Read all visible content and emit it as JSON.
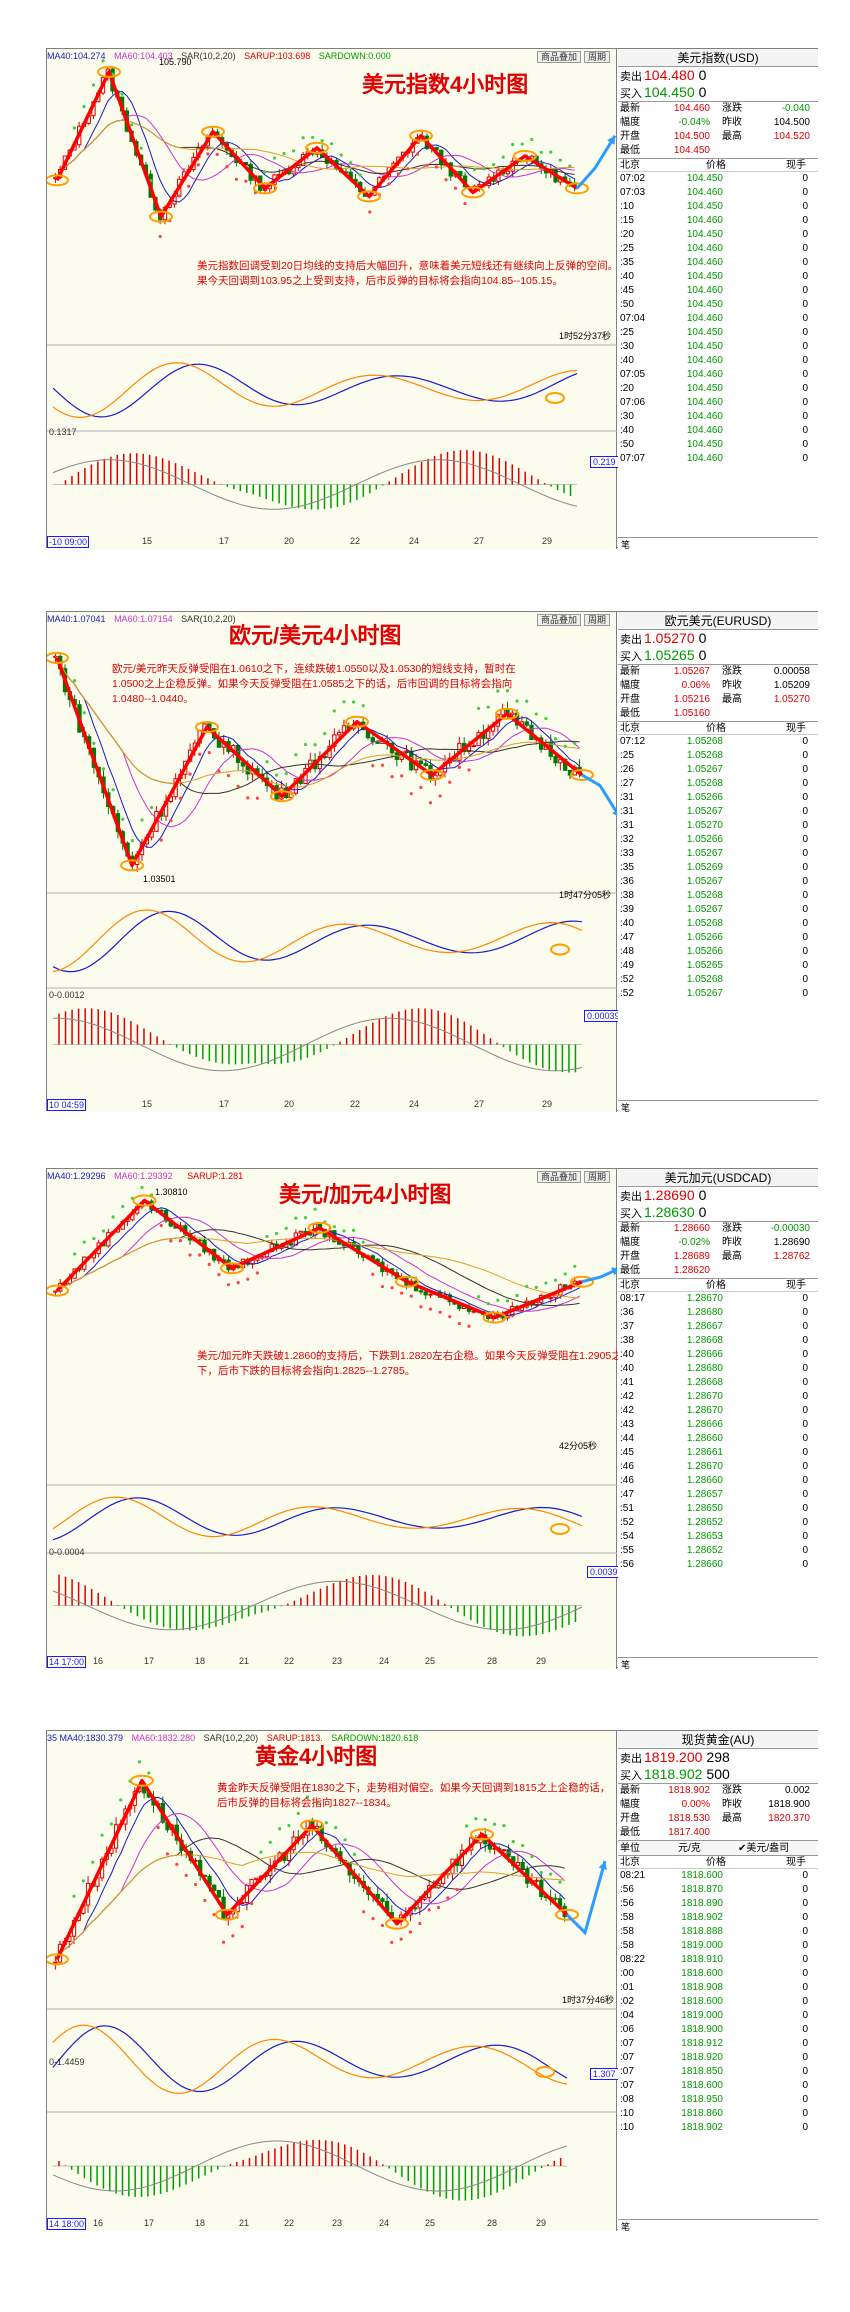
{
  "panels": [
    {
      "id": "usd",
      "chart_title": "美元指数4小时图",
      "topbar": {
        "ma40": "MA40:104.274",
        "ma60": "MA60:104.403",
        "sar": "SAR(10,2,20)",
        "sarup": "SARUP:103.698",
        "sardown": "SARDOWN:0.000"
      },
      "buttons": [
        "商品叠加",
        "周期"
      ],
      "peak_label": "105.790",
      "annotation": "美元指数回调受到20日均线的支持后大幅回升，意味着美元短线还有继续向上反弹的空间。如果今天回调到103.95之上受到支持，后市反弹的目标将会指向104.85--105.15。",
      "timer": "1时52分37秒",
      "sub_label": "0.1317",
      "value_box": "0.219",
      "x_start": "-10 09:00",
      "x_labels": [
        "15",
        "17",
        "20",
        "22",
        "24",
        "27",
        "29"
      ],
      "quote": {
        "title": "美元指数(USD)",
        "sell_label": "卖出",
        "sell": "104.480",
        "sell_size": "0",
        "buy_label": "买入",
        "buy": "104.450",
        "buy_size": "0",
        "rows": [
          [
            "最新",
            "104.460",
            "涨跌",
            "-0.040"
          ],
          [
            "幅度",
            "-0.04%",
            "昨收",
            "104.500"
          ],
          [
            "开盘",
            "104.500",
            "最高",
            "104.520"
          ],
          [
            "最低",
            "104.450",
            "",
            ""
          ]
        ],
        "tick_header": [
          "北京",
          "价格",
          "现手"
        ],
        "ticks": [
          [
            "07:02",
            "104.450",
            "0"
          ],
          [
            "07:03",
            "104.460",
            "0"
          ],
          [
            ":10",
            "104.450",
            "0"
          ],
          [
            ":15",
            "104.460",
            "0"
          ],
          [
            ":20",
            "104.450",
            "0"
          ],
          [
            ":25",
            "104.460",
            "0"
          ],
          [
            ":35",
            "104.460",
            "0"
          ],
          [
            ":40",
            "104.450",
            "0"
          ],
          [
            ":45",
            "104.460",
            "0"
          ],
          [
            ":50",
            "104.450",
            "0"
          ],
          [
            "07:04",
            "104.460",
            "0"
          ],
          [
            ":25",
            "104.450",
            "0"
          ],
          [
            ":30",
            "104.450",
            "0"
          ],
          [
            ":40",
            "104.460",
            "0"
          ],
          [
            "07:05",
            "104.460",
            "0"
          ],
          [
            ":20",
            "104.450",
            "0"
          ],
          [
            "07:06",
            "104.460",
            "0"
          ],
          [
            ":30",
            "104.460",
            "0"
          ],
          [
            ":40",
            "104.460",
            "0"
          ],
          [
            ":50",
            "104.450",
            "0"
          ],
          [
            "07:07",
            "104.460",
            "0"
          ]
        ],
        "footer": "笔"
      }
    },
    {
      "id": "eur",
      "chart_title": "欧元/美元4小时图",
      "topbar": {
        "ma40": "MA40:1.07041",
        "ma60": "MA60:1.07154",
        "sar": "SAR(10,2,20)",
        "sarup": "",
        "sardown": ""
      },
      "buttons": [
        "商品叠加",
        "周期"
      ],
      "peak_label": "1.03501",
      "annotation": "欧元/美元昨天反弹受阻在1.0610之下，连续跌破1.0550以及1.0530的短线支持，暂时在1.0500之上企稳反弹。如果今天反弹受阻在1.0585之下的话，后市回调的目标将会指向1.0480--1.0440。",
      "timer": "1时47分05秒",
      "sub_label": "0-0.0012",
      "value_box": "0.00039",
      "x_start": "10 04:59",
      "x_labels": [
        "15",
        "17",
        "20",
        "22",
        "24",
        "27",
        "29"
      ],
      "quote": {
        "title": "欧元美元(EURUSD)",
        "sell_label": "卖出",
        "sell": "1.05270",
        "sell_size": "0",
        "buy_label": "买入",
        "buy": "1.05265",
        "buy_size": "0",
        "rows": [
          [
            "最新",
            "1.05267",
            "涨跌",
            "0.00058"
          ],
          [
            "幅度",
            "0.06%",
            "昨收",
            "1.05209"
          ],
          [
            "开盘",
            "1.05216",
            "最高",
            "1.05270"
          ],
          [
            "最低",
            "1.05160",
            "",
            ""
          ]
        ],
        "tick_header": [
          "北京",
          "价格",
          "现手"
        ],
        "ticks": [
          [
            "07:12",
            "1.05268",
            "0"
          ],
          [
            ":25",
            "1.05268",
            "0"
          ],
          [
            ":26",
            "1.05267",
            "0"
          ],
          [
            ":27",
            "1.05268",
            "0"
          ],
          [
            ":31",
            "1.05266",
            "0"
          ],
          [
            ":31",
            "1.05267",
            "0"
          ],
          [
            ":31",
            "1.05270",
            "0"
          ],
          [
            ":32",
            "1.05266",
            "0"
          ],
          [
            ":33",
            "1.05267",
            "0"
          ],
          [
            ":35",
            "1.05269",
            "0"
          ],
          [
            ":36",
            "1.05267",
            "0"
          ],
          [
            ":38",
            "1.05268",
            "0"
          ],
          [
            ":39",
            "1.05267",
            "0"
          ],
          [
            ":40",
            "1.05268",
            "0"
          ],
          [
            ":47",
            "1.05266",
            "0"
          ],
          [
            ":48",
            "1.05266",
            "0"
          ],
          [
            ":49",
            "1.05265",
            "0"
          ],
          [
            ":52",
            "1.05268",
            "0"
          ],
          [
            ":52",
            "1.05267",
            "0"
          ]
        ],
        "footer": "笔"
      }
    },
    {
      "id": "cad",
      "chart_title": "美元/加元4小时图",
      "topbar": {
        "ma40": "MA40:1.29296",
        "ma60": "MA60:1.29392",
        "sar": "",
        "sarup": "SARUP:1.281",
        "sardown": ""
      },
      "buttons": [
        "商品叠加",
        "周期"
      ],
      "peak_label": "1.30810",
      "annotation": "美元/加元昨天跌破1.2860的支持后，下跌到1.2820左右企稳。如果今天反弹受阻在1.2905之下，后市下跌的目标将会指向1.2825--1.2785。",
      "timer": "42分05秒",
      "sub_label": "0-0.0004",
      "value_box": "0.00398",
      "x_start": "14 17:00",
      "x_labels": [
        "16",
        "17",
        "18",
        "21",
        "22",
        "23",
        "24",
        "25",
        "28",
        "29"
      ],
      "quote": {
        "title": "美元加元(USDCAD)",
        "sell_label": "卖出",
        "sell": "1.28690",
        "sell_size": "0",
        "buy_label": "买入",
        "buy": "1.28630",
        "buy_size": "0",
        "rows": [
          [
            "最新",
            "1.28660",
            "涨跌",
            "-0.00030"
          ],
          [
            "幅度",
            "-0.02%",
            "昨收",
            "1.28690"
          ],
          [
            "开盘",
            "1.28689",
            "最高",
            "1.28762"
          ],
          [
            "最低",
            "1.28620",
            "",
            ""
          ]
        ],
        "tick_header": [
          "北京",
          "价格",
          "现手"
        ],
        "ticks": [
          [
            "08:17",
            "1.28670",
            "0"
          ],
          [
            ":36",
            "1.28680",
            "0"
          ],
          [
            ":37",
            "1.28667",
            "0"
          ],
          [
            ":38",
            "1.28668",
            "0"
          ],
          [
            ":40",
            "1.28666",
            "0"
          ],
          [
            ":40",
            "1.28680",
            "0"
          ],
          [
            ":41",
            "1.28668",
            "0"
          ],
          [
            ":42",
            "1.28670",
            "0"
          ],
          [
            ":42",
            "1.28670",
            "0"
          ],
          [
            ":43",
            "1.28666",
            "0"
          ],
          [
            ":44",
            "1.28660",
            "0"
          ],
          [
            ":45",
            "1.28661",
            "0"
          ],
          [
            ":46",
            "1.28670",
            "0"
          ],
          [
            ":46",
            "1.28660",
            "0"
          ],
          [
            ":47",
            "1.28657",
            "0"
          ],
          [
            ":51",
            "1.28650",
            "0"
          ],
          [
            ":52",
            "1.28652",
            "0"
          ],
          [
            ":54",
            "1.28653",
            "0"
          ],
          [
            ":55",
            "1.28652",
            "0"
          ],
          [
            ":56",
            "1.28660",
            "0"
          ]
        ],
        "footer": "笔"
      }
    },
    {
      "id": "gold",
      "chart_title": "黄金4小时图",
      "topbar": {
        "ma40": "35 MA40:1830.379",
        "ma60": "MA60:1832.280",
        "sar": "SAR(10,2,20)",
        "sarup": "SARUP:1813.",
        "sardown": "SARDOWN:1820.618"
      },
      "buttons": [],
      "peak_label": "",
      "annotation": "黄金昨天反弹受阻在1830之下，走势相对偏空。如果今天回调到1815之上企稳的话，后市反弹的目标将会指向1827--1834。",
      "timer": "1时37分46秒",
      "sub_label": "0-1.4459",
      "value_box": "1.307",
      "x_start": "14 18:00",
      "x_labels": [
        "16",
        "17",
        "18",
        "21",
        "22",
        "23",
        "24",
        "25",
        "28",
        "29"
      ],
      "quote": {
        "title": "现货黄金(AU)",
        "sell_label": "卖出",
        "sell": "1819.200",
        "sell_size": "298",
        "buy_label": "买入",
        "buy": "1818.902",
        "buy_size": "500",
        "rows": [
          [
            "最新",
            "1818.902",
            "涨跌",
            "0.002"
          ],
          [
            "幅度",
            "0.00%",
            "昨收",
            "1818.900"
          ],
          [
            "开盘",
            "1818.530",
            "最高",
            "1820.370"
          ],
          [
            "最低",
            "1817.400",
            "",
            ""
          ]
        ],
        "unit_row": [
          "单位",
          "元/克",
          "✔美元/盎司"
        ],
        "tick_header": [
          "北京",
          "价格",
          "现手"
        ],
        "ticks": [
          [
            "08:21",
            "1818.600",
            "0"
          ],
          [
            ":56",
            "1818.870",
            "0"
          ],
          [
            ":56",
            "1818.890",
            "0"
          ],
          [
            ":58",
            "1818.902",
            "0"
          ],
          [
            ":58",
            "1818.888",
            "0"
          ],
          [
            ":58",
            "1819.000",
            "0"
          ],
          [
            "08:22",
            "1818.910",
            "0"
          ],
          [
            ":00",
            "1818.600",
            "0"
          ],
          [
            ":01",
            "1818.908",
            "0"
          ],
          [
            ":02",
            "1818.600",
            "0"
          ],
          [
            ":04",
            "1819.000",
            "0"
          ],
          [
            ":06",
            "1818.900",
            "0"
          ],
          [
            ":07",
            "1818.912",
            "0"
          ],
          [
            ":07",
            "1818.920",
            "0"
          ],
          [
            ":07",
            "1818.850",
            "0"
          ],
          [
            ":07",
            "1818.600",
            "0"
          ],
          [
            ":08",
            "1818.950",
            "0"
          ],
          [
            ":10",
            "1818.860",
            "0"
          ],
          [
            ":10",
            "1818.902",
            "0"
          ]
        ],
        "footer": "笔"
      }
    }
  ],
  "chart_data": [
    {
      "type": "candlestick",
      "title": "美元指数4小时图",
      "ylim": [
        103.6,
        105.9
      ],
      "zigzag": [
        104.45,
        105.79,
        104.0,
        105.05,
        104.35,
        104.85,
        104.25,
        105.0,
        104.3,
        104.75,
        104.35
      ],
      "projection": [
        104.6,
        105.0
      ]
    },
    {
      "type": "candlestick",
      "title": "欧元/美元4小时图",
      "ylim": [
        1.03,
        1.08
      ],
      "zigzag": [
        1.074,
        1.035,
        1.061,
        1.048,
        1.062,
        1.052,
        1.0635,
        1.052
      ],
      "projection": [
        1.05,
        1.044
      ]
    },
    {
      "type": "candlestick",
      "title": "美元/加元4小时图",
      "ylim": [
        1.275,
        1.312
      ],
      "zigzag": [
        1.288,
        1.3081,
        1.293,
        1.302,
        1.29,
        1.282,
        1.29
      ],
      "projection": [
        1.291,
        1.293
      ]
    },
    {
      "type": "candlestick",
      "title": "黄金4小时图",
      "ylim": [
        1800,
        1860
      ],
      "zigzag": [
        1812,
        1852,
        1822,
        1842,
        1820,
        1840,
        1822
      ],
      "projection": [
        1818,
        1834
      ]
    }
  ]
}
